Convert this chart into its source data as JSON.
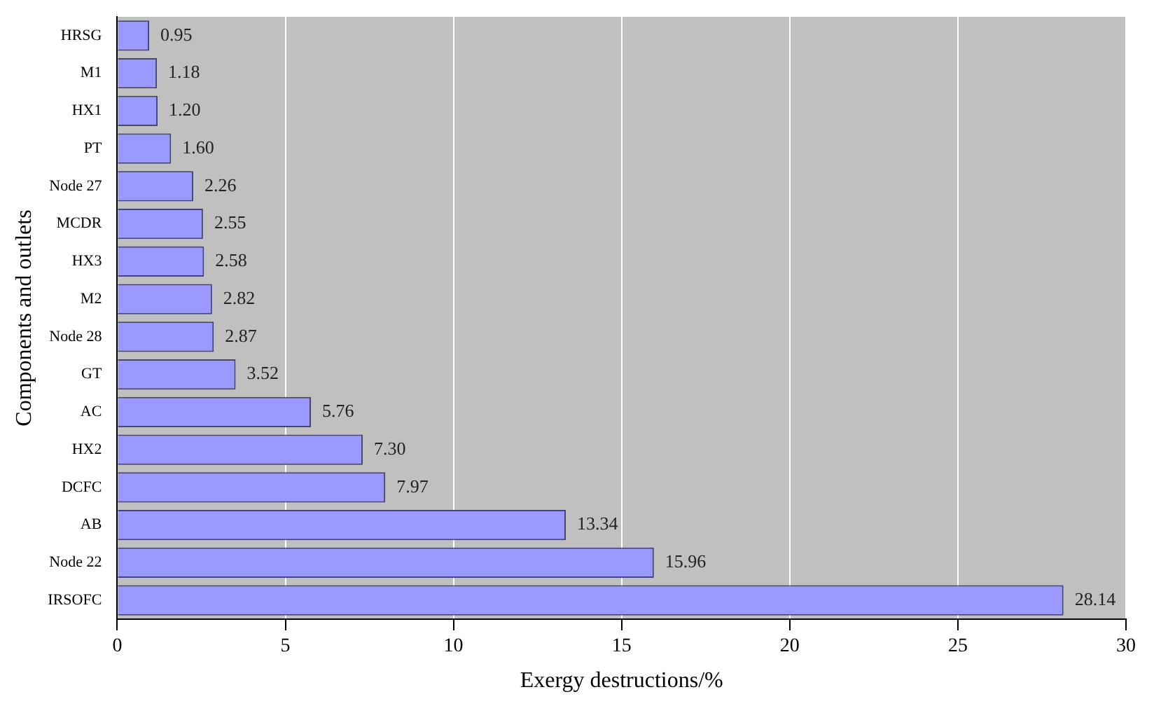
{
  "chart_data": {
    "type": "bar",
    "orientation": "horizontal",
    "xlabel": "Exergy destructions/%",
    "ylabel": "Components and outlets",
    "categories": [
      "HRSG",
      "M1",
      "HX1",
      "PT",
      "Node 27",
      "MCDR",
      "HX3",
      "M2",
      "Node 28",
      "GT",
      "AC",
      "HX2",
      "DCFC",
      "AB",
      "Node 22",
      "IRSOFC"
    ],
    "values": [
      0.95,
      1.18,
      1.2,
      1.6,
      2.26,
      2.55,
      2.58,
      2.82,
      2.87,
      3.52,
      5.76,
      7.3,
      7.97,
      13.34,
      15.96,
      28.14
    ],
    "value_labels": [
      "0.95",
      "1.18",
      "1.20",
      "1.60",
      "2.26",
      "2.55",
      "2.58",
      "2.82",
      "2.87",
      "3.52",
      "5.76",
      "7.30",
      "7.97",
      "13.34",
      "15.96",
      "28.14"
    ],
    "color": "#9999ff",
    "xlim": [
      0,
      30
    ],
    "xticks": [
      0,
      5,
      10,
      15,
      20,
      25,
      30
    ],
    "grid": "x",
    "legend": false
  }
}
